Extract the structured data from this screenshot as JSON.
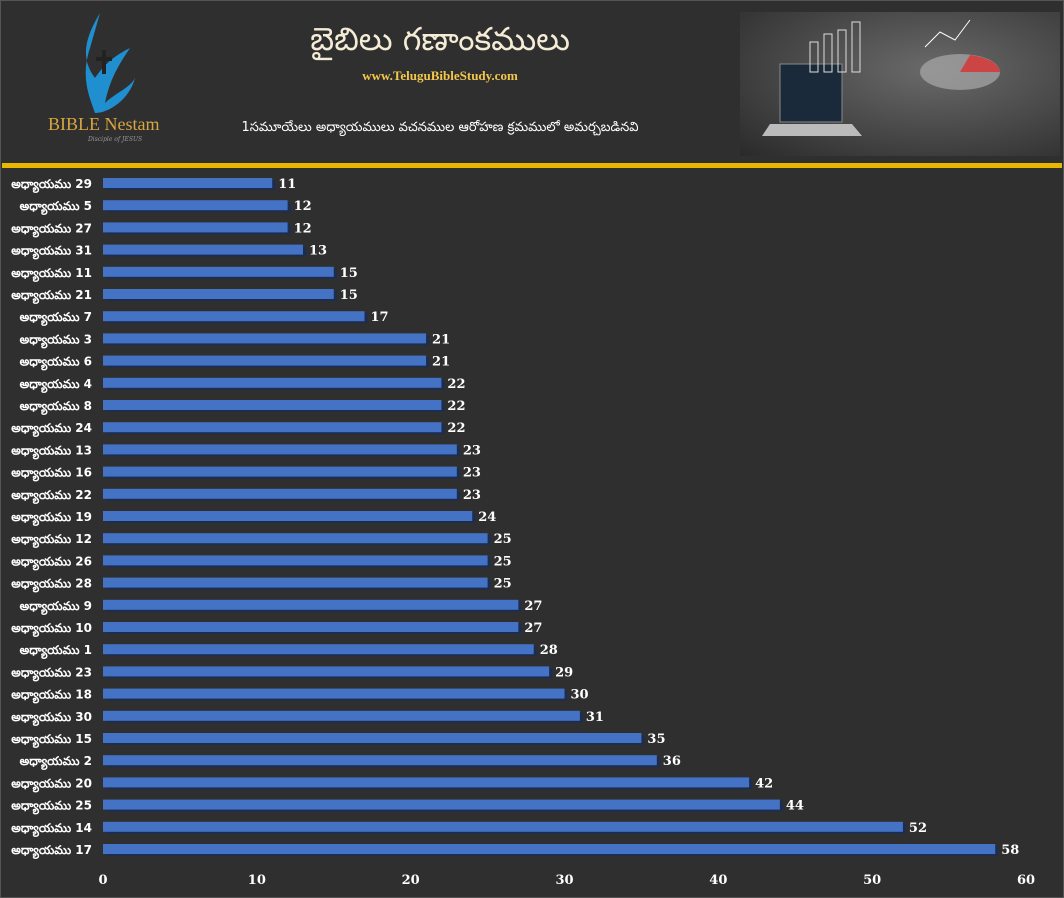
{
  "header": {
    "logo_text": "BIBLE Nestam",
    "logo_tagline": "Disciple of JESUS",
    "title": "బైబిలు గణాంకములు",
    "url": "www.TeluguBibleStudy.com",
    "subtitle": "1సమూయేలు అధ్యాయములు వచనముల ఆరోహణ క్రమములో అమర్చబడినవి"
  },
  "colors": {
    "bar": "#4472c4",
    "accent": "#e8b800",
    "background": "#2f2f2f",
    "label": "#ffffff"
  },
  "chart_data": {
    "type": "bar",
    "orientation": "horizontal",
    "categories": [
      "అధ్యాయము 29",
      "అధ్యాయము 5",
      "అధ్యాయము 27",
      "అధ్యాయము 31",
      "అధ్యాయము 11",
      "అధ్యాయము 21",
      "అధ్యాయము 7",
      "అధ్యాయము 3",
      "అధ్యాయము 6",
      "అధ్యాయము 4",
      "అధ్యాయము 8",
      "అధ్యాయము 24",
      "అధ్యాయము 13",
      "అధ్యాయము 16",
      "అధ్యాయము 22",
      "అధ్యాయము 19",
      "అధ్యాయము 12",
      "అధ్యాయము 26",
      "అధ్యాయము 28",
      "అధ్యాయము 9",
      "అధ్యాయము 10",
      "అధ్యాయము 1",
      "అధ్యాయము 23",
      "అధ్యాయము 18",
      "అధ్యాయము 30",
      "అధ్యాయము 15",
      "అధ్యాయము 2",
      "అధ్యాయము 20",
      "అధ్యాయము 25",
      "అధ్యాయము 14",
      "అధ్యాయము 17"
    ],
    "values": [
      11,
      12,
      12,
      13,
      15,
      15,
      17,
      21,
      21,
      22,
      22,
      22,
      23,
      23,
      23,
      24,
      25,
      25,
      25,
      27,
      27,
      28,
      29,
      30,
      31,
      35,
      36,
      42,
      44,
      52,
      58
    ],
    "xlim": [
      0,
      60
    ],
    "xticks": [
      0,
      10,
      20,
      30,
      40,
      50,
      60
    ],
    "grid": false,
    "data_labels": true
  }
}
